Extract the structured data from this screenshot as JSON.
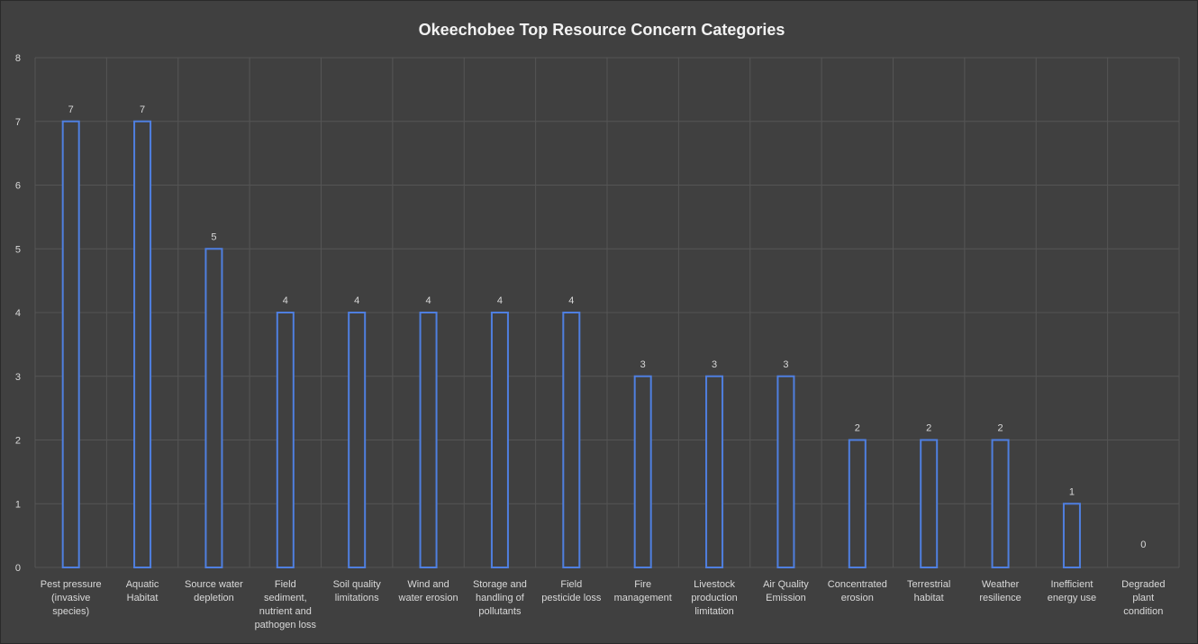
{
  "chart_data": {
    "type": "bar",
    "title": "Okeechobee Top Resource Concern Categories",
    "xlabel": "",
    "ylabel": "",
    "ylim": [
      0,
      8
    ],
    "yticks": [
      0,
      1,
      2,
      3,
      4,
      5,
      6,
      7,
      8
    ],
    "grid": true,
    "bar_outline_color": "#4f7fe0",
    "background_color": "#404040",
    "categories": [
      [
        "Pest pressure",
        "(invasive",
        "species)"
      ],
      [
        "Aquatic",
        "Habitat"
      ],
      [
        "Source water",
        "depletion"
      ],
      [
        "Field",
        "sediment,",
        "nutrient and",
        "pathogen loss"
      ],
      [
        "Soil quality",
        "limitations"
      ],
      [
        "Wind and",
        "water erosion"
      ],
      [
        "Storage and",
        "handling of",
        "pollutants"
      ],
      [
        "Field",
        "pesticide loss"
      ],
      [
        "Fire",
        "management"
      ],
      [
        "Livestock",
        "production",
        "limitation"
      ],
      [
        "Air Quality",
        "Emission"
      ],
      [
        "Concentrated",
        "erosion"
      ],
      [
        "Terrestrial",
        "habitat"
      ],
      [
        "Weather",
        "resilience"
      ],
      [
        "Inefficient",
        "energy use"
      ],
      [
        "Degraded",
        "plant",
        "condition"
      ]
    ],
    "values": [
      7,
      7,
      5,
      4,
      4,
      4,
      4,
      4,
      3,
      3,
      3,
      2,
      2,
      2,
      1,
      0
    ]
  }
}
